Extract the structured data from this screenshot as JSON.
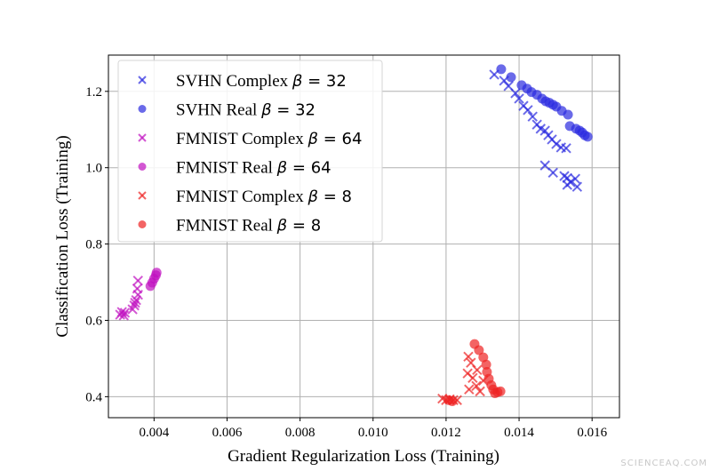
{
  "chart_data": {
    "type": "scatter",
    "title": "",
    "xlabel": "Gradient Regularization Loss (Training)",
    "ylabel": "Classification Loss (Training)",
    "xlim": [
      0.00275,
      0.01675
    ],
    "ylim": [
      0.345,
      1.295
    ],
    "xticks": [
      0.004,
      0.006,
      0.008,
      0.01,
      0.012,
      0.014,
      0.016
    ],
    "xtick_labels": [
      "0.004",
      "0.006",
      "0.008",
      "0.010",
      "0.012",
      "0.014",
      "0.016"
    ],
    "yticks": [
      0.4,
      0.6,
      0.8,
      1.0,
      1.2
    ],
    "ytick_labels": [
      "0.4",
      "0.6",
      "0.8",
      "1.0",
      "1.2"
    ],
    "grid": true,
    "legend_position": "top-left",
    "series": [
      {
        "name": "SVHN Complex β = 32",
        "marker": "x",
        "color": "#2b2be0",
        "x": [
          0.01332,
          0.01359,
          0.01371,
          0.0139,
          0.014,
          0.01412,
          0.01424,
          0.01437,
          0.01449,
          0.01459,
          0.01471,
          0.0148,
          0.0149,
          0.01502,
          0.01515,
          0.01529,
          0.01471,
          0.01493,
          0.01524,
          0.01532,
          0.01541,
          0.01554,
          0.01559,
          0.01532
        ],
        "y": [
          1.244,
          1.228,
          1.214,
          1.195,
          1.181,
          1.162,
          1.151,
          1.134,
          1.113,
          1.102,
          1.097,
          1.085,
          1.074,
          1.062,
          1.053,
          1.051,
          1.006,
          0.987,
          0.978,
          0.955,
          0.962,
          0.971,
          0.95,
          0.973
        ]
      },
      {
        "name": "SVHN Real β = 32",
        "marker": "o",
        "color": "#2b2be0",
        "x": [
          0.01351,
          0.01378,
          0.01407,
          0.01422,
          0.01434,
          0.01449,
          0.01463,
          0.01473,
          0.01483,
          0.01493,
          0.01502,
          0.01517,
          0.01534,
          0.01539,
          0.01556,
          0.01566,
          0.01573,
          0.0158,
          0.01588
        ],
        "y": [
          1.258,
          1.237,
          1.216,
          1.207,
          1.198,
          1.191,
          1.181,
          1.174,
          1.17,
          1.165,
          1.16,
          1.149,
          1.139,
          1.109,
          1.102,
          1.097,
          1.092,
          1.085,
          1.081
        ]
      },
      {
        "name": "FMNIST Complex β = 64",
        "marker": "x",
        "color": "#c010c0",
        "x": [
          0.00356,
          0.00354,
          0.00356,
          0.00351,
          0.00346,
          0.00341,
          0.00312,
          0.00317,
          0.00307,
          0.0032,
          0.00348
        ],
        "y": [
          0.704,
          0.683,
          0.667,
          0.653,
          0.639,
          0.629,
          0.622,
          0.613,
          0.615,
          0.62,
          0.646
        ]
      },
      {
        "name": "FMNIST Real β = 64",
        "marker": "o",
        "color": "#c010c0",
        "x": [
          0.0039,
          0.00395,
          0.004,
          0.00405,
          0.00407
        ],
        "y": [
          0.69,
          0.699,
          0.709,
          0.718,
          0.725
        ]
      },
      {
        "name": "FMNIST Complex β = 8",
        "marker": "x",
        "color": "#ee2222",
        "x": [
          0.01261,
          0.01268,
          0.01259,
          0.01273,
          0.01263,
          0.01283,
          0.01293,
          0.01285,
          0.01302,
          0.0119,
          0.012,
          0.0121,
          0.0122,
          0.0123
        ],
        "y": [
          0.505,
          0.489,
          0.461,
          0.449,
          0.419,
          0.428,
          0.414,
          0.47,
          0.442,
          0.395,
          0.391,
          0.393,
          0.391,
          0.391
        ]
      },
      {
        "name": "FMNIST Real β = 8",
        "marker": "o",
        "color": "#ee2222",
        "x": [
          0.01278,
          0.0129,
          0.01302,
          0.0131,
          0.01312,
          0.01317,
          0.01324,
          0.01329,
          0.01341,
          0.01349,
          0.01334,
          0.01207,
          0.01217
        ],
        "y": [
          0.538,
          0.522,
          0.503,
          0.484,
          0.465,
          0.447,
          0.43,
          0.419,
          0.412,
          0.414,
          0.409,
          0.391,
          0.388
        ]
      }
    ]
  },
  "watermark": "SCIENCEAQ.COM"
}
